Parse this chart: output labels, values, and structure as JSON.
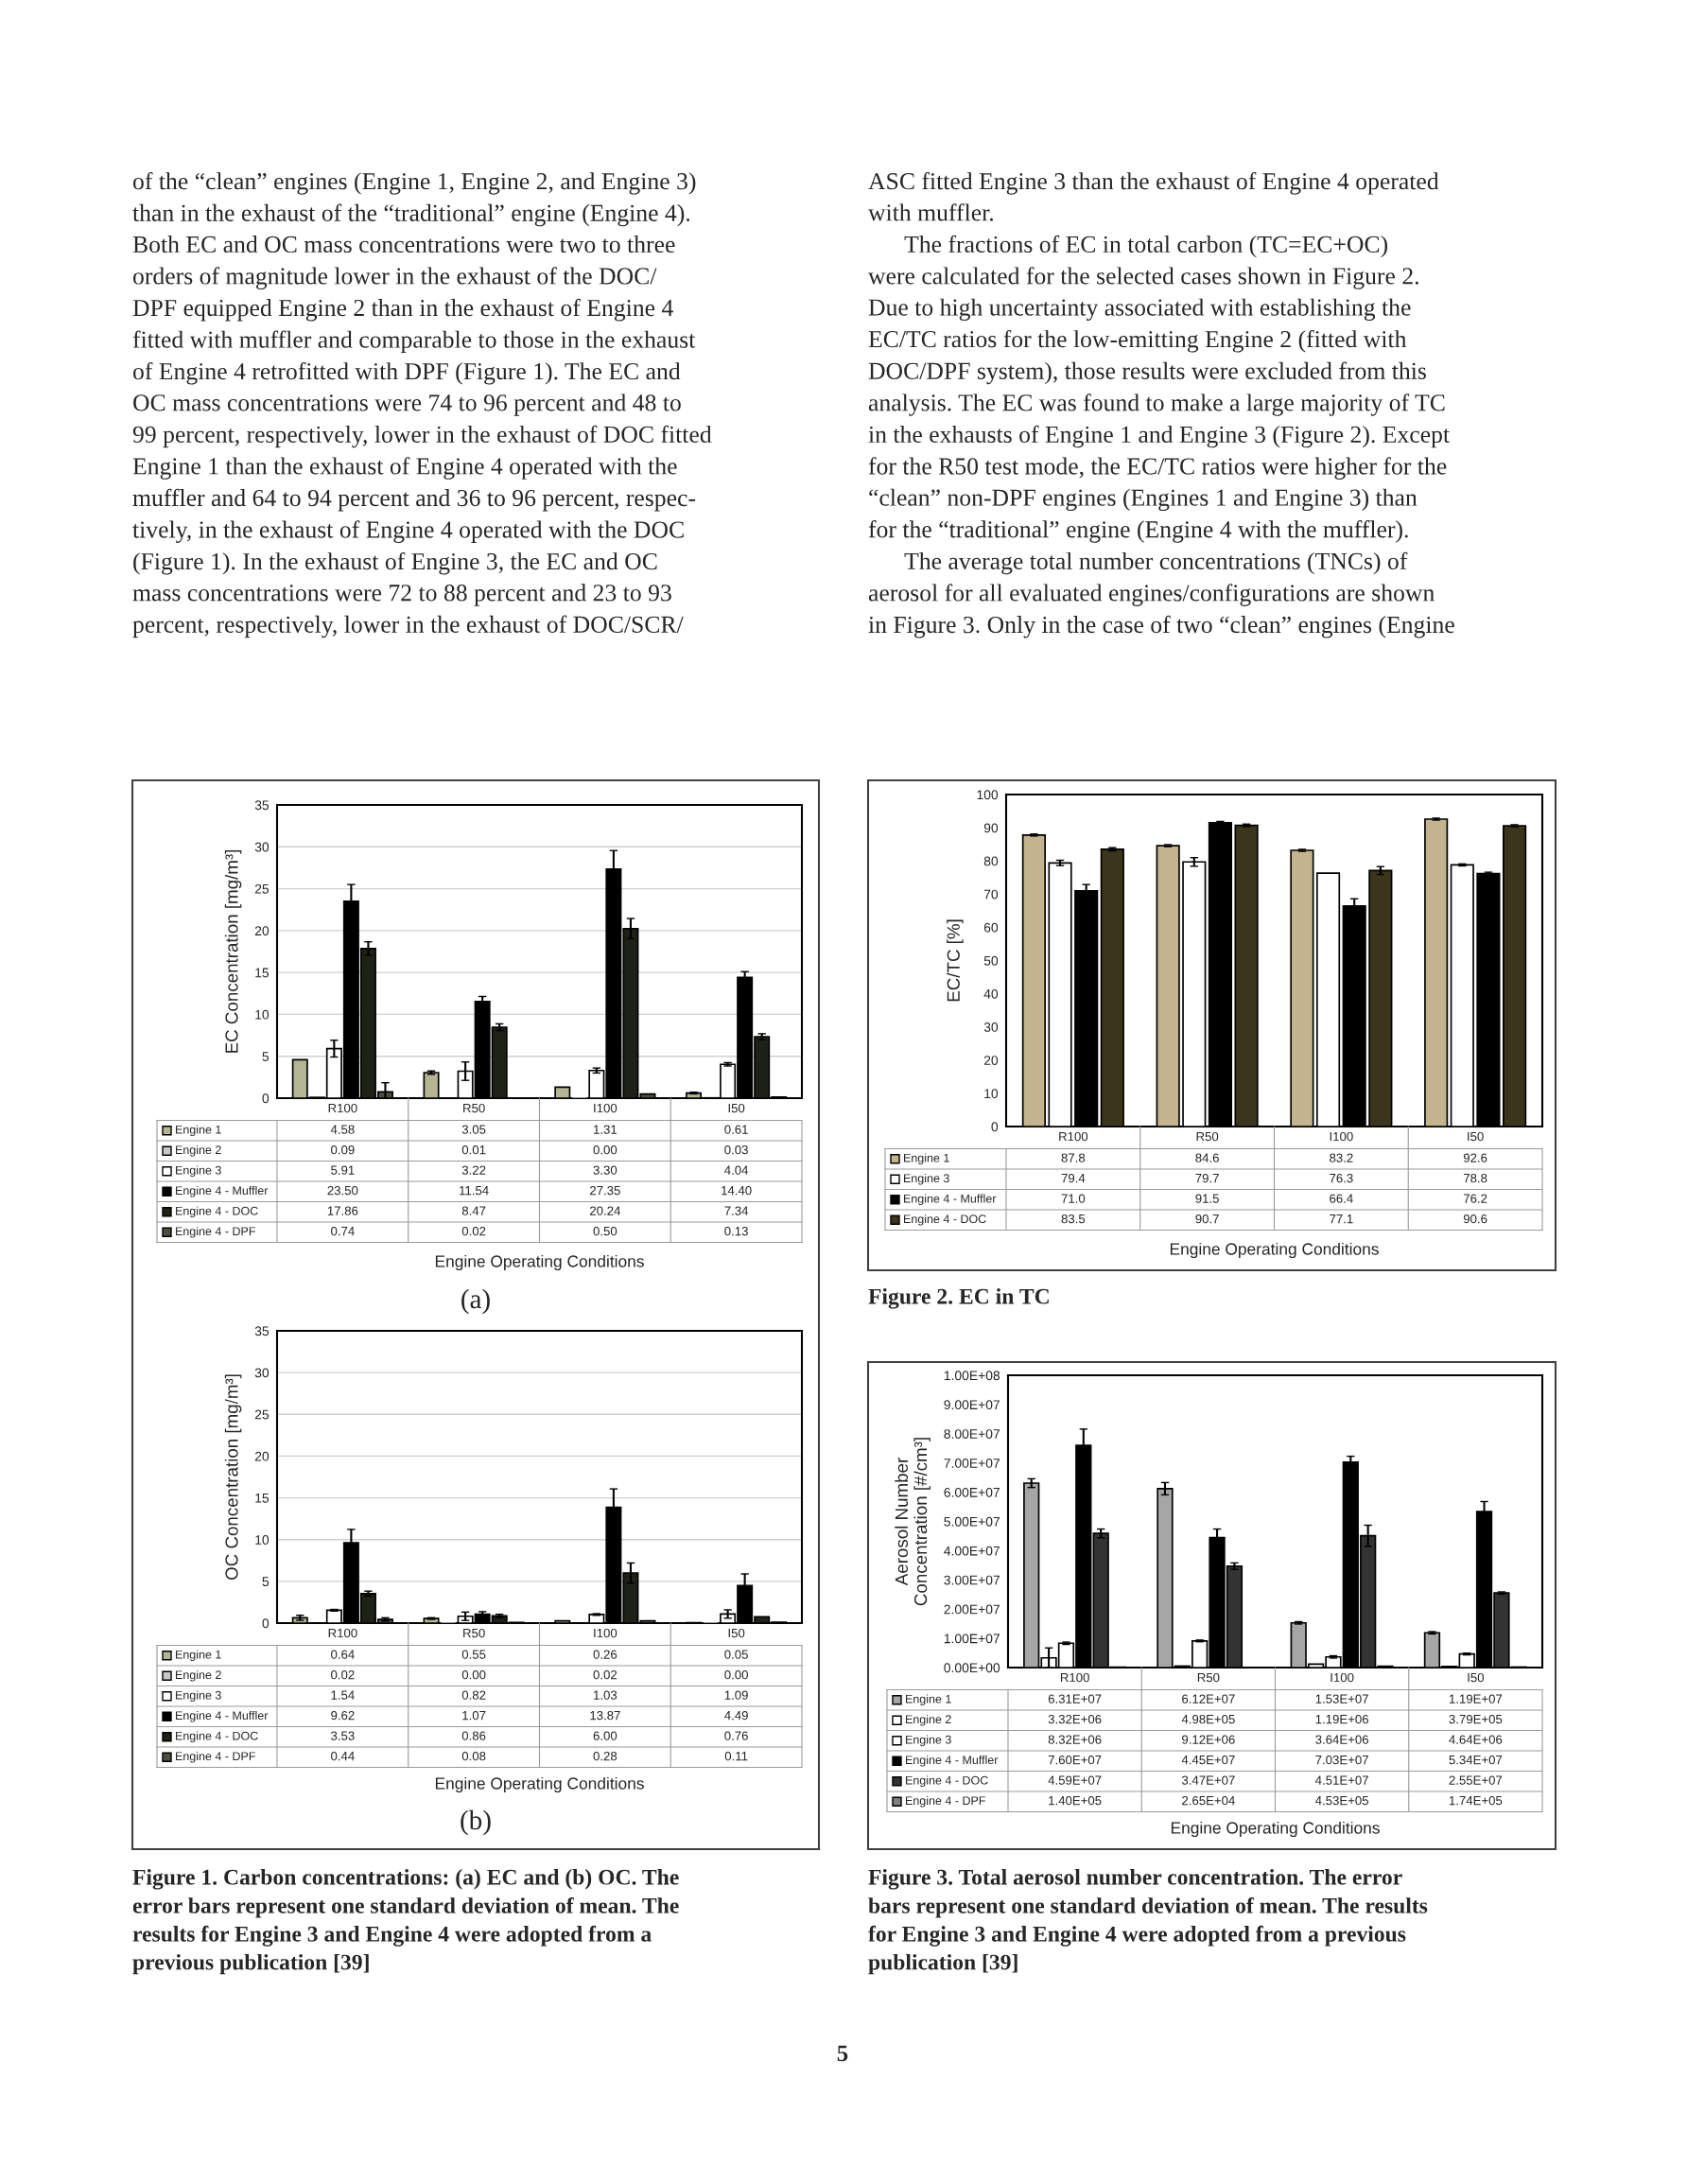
{
  "chart_data": [
    {
      "type": "bar",
      "categories": [
        "R100",
        "R50",
        "I100",
        "I50"
      ],
      "xlabel": "Engine Operating Conditions",
      "ylabel": "EC Concentration [mg/m³]",
      "ylim": [
        0,
        35
      ],
      "yticks": [
        0,
        5,
        10,
        15,
        20,
        25,
        30,
        35
      ],
      "grid": "y",
      "legend": "bottom",
      "series": [
        {
          "name": "Engine 1",
          "color": "#b3b594",
          "values": [
            4.58,
            3.05,
            1.31,
            0.61
          ],
          "value_labels": [
            "4.58",
            "3.05",
            "1.31",
            "0.61"
          ],
          "errors": [
            null,
            0.2,
            null,
            0.1
          ]
        },
        {
          "name": "Engine 2",
          "color": "#c8c8c8",
          "values": [
            0.09,
            0.01,
            0.0,
            0.03
          ],
          "value_labels": [
            "0.09",
            "0.01",
            "0.00",
            "0.03"
          ],
          "errors": [
            null,
            null,
            null,
            null
          ]
        },
        {
          "name": "Engine 3",
          "color": "#ffffff",
          "values": [
            5.91,
            3.22,
            3.3,
            4.04
          ],
          "value_labels": [
            "5.91",
            "3.22",
            "3.30",
            "4.04"
          ],
          "errors": [
            1.0,
            1.1,
            0.3,
            0.2
          ]
        },
        {
          "name": "Engine 4 - Muffler",
          "color": "#000000",
          "values": [
            23.5,
            11.54,
            27.35,
            14.4
          ],
          "value_labels": [
            "23.50",
            "11.54",
            "27.35",
            "14.40"
          ],
          "errors": [
            2.0,
            0.6,
            2.2,
            0.7
          ]
        },
        {
          "name": "Engine 4 - DOC",
          "color": "#1e2216",
          "values": [
            17.86,
            8.47,
            20.24,
            7.34
          ],
          "value_labels": [
            "17.86",
            "8.47",
            "20.24",
            "7.34"
          ],
          "errors": [
            0.8,
            0.4,
            1.2,
            0.35
          ]
        },
        {
          "name": "Engine 4 - DPF",
          "color": "#4d4d40",
          "values": [
            0.74,
            0.02,
            0.5,
            0.13
          ],
          "value_labels": [
            "0.74",
            "0.02",
            "0.50",
            "0.13"
          ],
          "errors": [
            1.1,
            null,
            null,
            null
          ]
        }
      ],
      "annotations": [
        "of the “clean” engines (Engine 1, Engine 2, and Engine 3)\nthan in the exhaust of the “traditional” engine (Engine 4).\nBoth EC and OC mass concentrations were two to three\norders of magnitude lower in the exhaust of the DOC/\nDPF equipped Engine 2 than in the exhaust of Engine 4\nfitted with muffler and comparable to those in the exhaust\nof Engine 4 retrofitted with DPF (Figure 1). The EC and\nOC mass concentrations were 74 to 96 percent and 48 to\n99 percent, respectively, lower in the exhaust of DOC fitted\nEngine 1 than the exhaust of Engine 4 operated with the\nmuffler and 64 to 94 percent and 36 to 96 percent, respec-\ntively, in the exhaust of Engine 4 operated with the DOC\n(Figure 1). In the exhaust of Engine 3, the EC and OC\nmass concentrations were 72 to 88 percent and 23 to 93\npercent, respectively, lower in the exhaust of DOC/SCR/",
        "(a)"
      ]
    },
    {
      "type": "bar",
      "categories": [
        "R100",
        "R50",
        "I100",
        "I50"
      ],
      "xlabel": "Engine Operating Conditions",
      "ylabel": "OC Concentration [mg/m³]",
      "ylim": [
        0,
        35
      ],
      "yticks": [
        0,
        5,
        10,
        15,
        20,
        25,
        30,
        35
      ],
      "grid": "y",
      "legend": "bottom",
      "series": [
        {
          "name": "Engine 1",
          "color": "#b3b594",
          "values": [
            0.64,
            0.55,
            0.26,
            0.05
          ],
          "value_labels": [
            "0.64",
            "0.55",
            "0.26",
            "0.05"
          ],
          "errors": [
            0.3,
            0.1,
            null,
            null
          ]
        },
        {
          "name": "Engine 2",
          "color": "#c8c8c8",
          "values": [
            0.02,
            0.0,
            0.02,
            0.0
          ],
          "value_labels": [
            "0.02",
            "0.00",
            "0.02",
            "0.00"
          ],
          "errors": [
            null,
            null,
            null,
            null
          ]
        },
        {
          "name": "Engine 3",
          "color": "#ffffff",
          "values": [
            1.54,
            0.82,
            1.03,
            1.09
          ],
          "value_labels": [
            "1.54",
            "0.82",
            "1.03",
            "1.09"
          ],
          "errors": [
            0.1,
            0.5,
            0.1,
            0.5
          ]
        },
        {
          "name": "Engine 4 - Muffler",
          "color": "#000000",
          "values": [
            9.62,
            1.07,
            13.87,
            4.49
          ],
          "value_labels": [
            "9.62",
            "1.07",
            "13.87",
            "4.49"
          ],
          "errors": [
            1.6,
            0.3,
            2.2,
            1.4
          ]
        },
        {
          "name": "Engine 4 - DOC",
          "color": "#1e2216",
          "values": [
            3.53,
            0.86,
            6.0,
            0.76
          ],
          "value_labels": [
            "3.53",
            "0.86",
            "6.00",
            "0.76"
          ],
          "errors": [
            0.3,
            0.2,
            1.2,
            null
          ]
        },
        {
          "name": "Engine 4 - DPF",
          "color": "#4d4d40",
          "values": [
            0.44,
            0.08,
            0.28,
            0.11
          ],
          "value_labels": [
            "0.44",
            "0.08",
            "0.28",
            "0.11"
          ],
          "errors": [
            0.2,
            null,
            null,
            null
          ]
        }
      ],
      "annotations": [
        "(b)",
        "Figure 1. Carbon concentrations: (a) EC and (b) OC. The\nerror bars represent one standard deviation of mean. The\nresults for Engine 3 and Engine 4 were adopted from a\nprevious publication [39]"
      ]
    },
    {
      "type": "bar",
      "categories": [
        "R100",
        "R50",
        "I100",
        "I50"
      ],
      "xlabel": "Engine Operating Conditions",
      "ylabel": "EC/TC [%]",
      "ylim": [
        0,
        100
      ],
      "yticks": [
        0,
        10,
        20,
        30,
        40,
        50,
        60,
        70,
        80,
        90,
        100
      ],
      "legend": "bottom",
      "series": [
        {
          "name": "Engine 1",
          "color": "#c3b48f",
          "values": [
            87.8,
            84.6,
            83.2,
            92.6
          ],
          "value_labels": [
            "87.8",
            "84.6",
            "83.2",
            "92.6"
          ],
          "errors": [
            0.3,
            0.3,
            0.3,
            0.3
          ]
        },
        {
          "name": "Engine 3",
          "color": "#ffffff",
          "values": [
            79.4,
            79.7,
            76.3,
            78.8
          ],
          "value_labels": [
            "79.4",
            "79.7",
            "76.3",
            "78.8"
          ],
          "errors": [
            0.8,
            1.3,
            null,
            0.3
          ]
        },
        {
          "name": "Engine 4 - Muffler",
          "color": "#000000",
          "values": [
            71.0,
            91.5,
            66.4,
            76.2
          ],
          "value_labels": [
            "71.0",
            "91.5",
            "66.4",
            "76.2"
          ],
          "errors": [
            1.9,
            0.4,
            2.2,
            0.4
          ]
        },
        {
          "name": "Engine 4 - DOC",
          "color": "#3b351c",
          "values": [
            83.5,
            90.7,
            77.1,
            90.6
          ],
          "value_labels": [
            "83.5",
            "90.7",
            "77.1",
            "90.6"
          ],
          "errors": [
            0.5,
            0.4,
            1.2,
            0.3
          ]
        }
      ],
      "annotations": [
        "ASC fitted Engine 3 than the exhaust of Engine 4 operated\nwith muffler.\n      The fractions of EC in total carbon (TC=EC+OC)\nwere calculated for the selected cases shown in Figure 2.\nDue to high uncertainty associated with establishing the\nEC/TC ratios for the low-emitting Engine 2 (fitted with\nDOC/DPF system), those results were excluded from this\nanalysis. The EC was found to make a large majority of TC\nin the exhausts of Engine 1 and Engine 3 (Figure 2). Except\nfor the R50 test mode, the EC/TC ratios were higher for the\n“clean” non-DPF engines (Engines 1 and Engine 3) than\nfor the “traditional” engine (Engine 4 with the muffler).\n      The average total number concentrations (TNCs) of\naerosol for all evaluated engines/configurations are shown\nin Figure 3. Only in the case of two “clean” engines (Engine",
        "Figure 2. EC in TC"
      ]
    },
    {
      "type": "bar",
      "categories": [
        "R100",
        "R50",
        "I100",
        "I50"
      ],
      "xlabel": "Engine Operating Conditions",
      "ylabel": "Aerosol Number\nConcentration [#/cm³]",
      "ylim": [
        0,
        100000000
      ],
      "yticks": [
        {
          "value": 0,
          "label": "0.00E+00"
        },
        {
          "value": 10000000,
          "label": "1.00E+07"
        },
        {
          "value": 20000000,
          "label": "2.00E+07"
        },
        {
          "value": 30000000,
          "label": "3.00E+07"
        },
        {
          "value": 40000000,
          "label": "4.00E+07"
        },
        {
          "value": 50000000,
          "label": "5.00E+07"
        },
        {
          "value": 60000000,
          "label": "6.00E+07"
        },
        {
          "value": 70000000,
          "label": "7.00E+07"
        },
        {
          "value": 80000000,
          "label": "8.00E+07"
        },
        {
          "value": 90000000,
          "label": "9.00E+07"
        },
        {
          "value": 100000000,
          "label": "1.00E+08"
        }
      ],
      "legend": "bottom",
      "series": [
        {
          "name": "Engine 1",
          "color": "#a6a6a6",
          "values": [
            63100000,
            61200000,
            15300000,
            11900000
          ],
          "value_labels": [
            "6.31E+07",
            "6.12E+07",
            "1.53E+07",
            "1.19E+07"
          ],
          "errors": [
            1500000,
            2100000,
            400000,
            400000
          ]
        },
        {
          "name": "Engine 2",
          "color": "#ffffff",
          "values": [
            3320000,
            498000,
            1190000,
            379000
          ],
          "value_labels": [
            "3.32E+06",
            "4.98E+05",
            "1.19E+06",
            "3.79E+05"
          ],
          "errors": [
            3400000,
            null,
            null,
            null
          ]
        },
        {
          "name": "Engine 3",
          "color": "#ffffff",
          "values": [
            8320000,
            9120000,
            3640000,
            4640000
          ],
          "value_labels": [
            "8.32E+06",
            "9.12E+06",
            "3.64E+06",
            "4.64E+06"
          ],
          "errors": [
            400000,
            300000,
            400000,
            300000
          ]
        },
        {
          "name": "Engine 4 - Muffler",
          "color": "#000000",
          "values": [
            76000000,
            44500000,
            70300000,
            53400000
          ],
          "value_labels": [
            "7.60E+07",
            "4.45E+07",
            "7.03E+07",
            "5.34E+07"
          ],
          "errors": [
            5600000,
            2900000,
            2000000,
            3400000
          ]
        },
        {
          "name": "Engine 4 - DOC",
          "color": "#333333",
          "values": [
            45900000,
            34700000,
            45100000,
            25500000
          ],
          "value_labels": [
            "4.59E+07",
            "3.47E+07",
            "4.51E+07",
            "2.55E+07"
          ],
          "errors": [
            1500000,
            1100000,
            3600000,
            400000
          ]
        },
        {
          "name": "Engine 4 - DPF",
          "color": "#7f7f7f",
          "values": [
            140000,
            26500,
            453000,
            174000
          ],
          "value_labels": [
            "1.40E+05",
            "2.65E+04",
            "4.53E+05",
            "1.74E+05"
          ],
          "errors": [
            null,
            null,
            null,
            null
          ]
        }
      ],
      "annotations": [
        "Figure 3. Total aerosol number concentration. The error\nbars represent one standard deviation of mean. The results\nfor Engine 3 and Engine 4 were adopted from a previous\npublication [39]",
        "5"
      ]
    }
  ]
}
